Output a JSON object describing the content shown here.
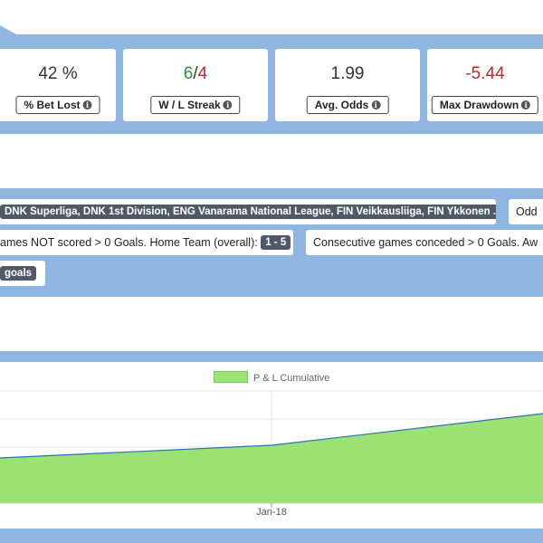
{
  "stats": [
    {
      "id": "bet-lost",
      "value": "42 %",
      "label": "% Bet Lost"
    },
    {
      "id": "wl-streak",
      "win": "6",
      "sep": "/",
      "loss": "4",
      "label": "W / L Streak"
    },
    {
      "id": "avg-odds",
      "value": "1.99",
      "label": "Avg. Odds"
    },
    {
      "id": "max-drawdown",
      "value": "-5.44",
      "label": "Max Drawdown"
    }
  ],
  "filters": {
    "leagues_text": "DNK Superliga, DNK 1st Division, ENG Vanarama National League, FIN Veikkausliiga, FIN Ykkonen ...",
    "odds_text": "Odd",
    "home_prefix": "ames NOT scored > 0 Goals. Home Team (overall):",
    "home_tag": "1 - 5",
    "away_text": "Consecutive games conceded > 0 Goals. Aw",
    "goals_tag": "goals"
  },
  "info_glyph": "i",
  "chart_data": {
    "type": "area",
    "series": [
      {
        "name": "P & L Cumulative",
        "color": "#9be275",
        "line_color": "#2f6fb5"
      }
    ],
    "x_ticks": [
      "Jan-18"
    ],
    "grid": true,
    "legend": "top-center"
  }
}
